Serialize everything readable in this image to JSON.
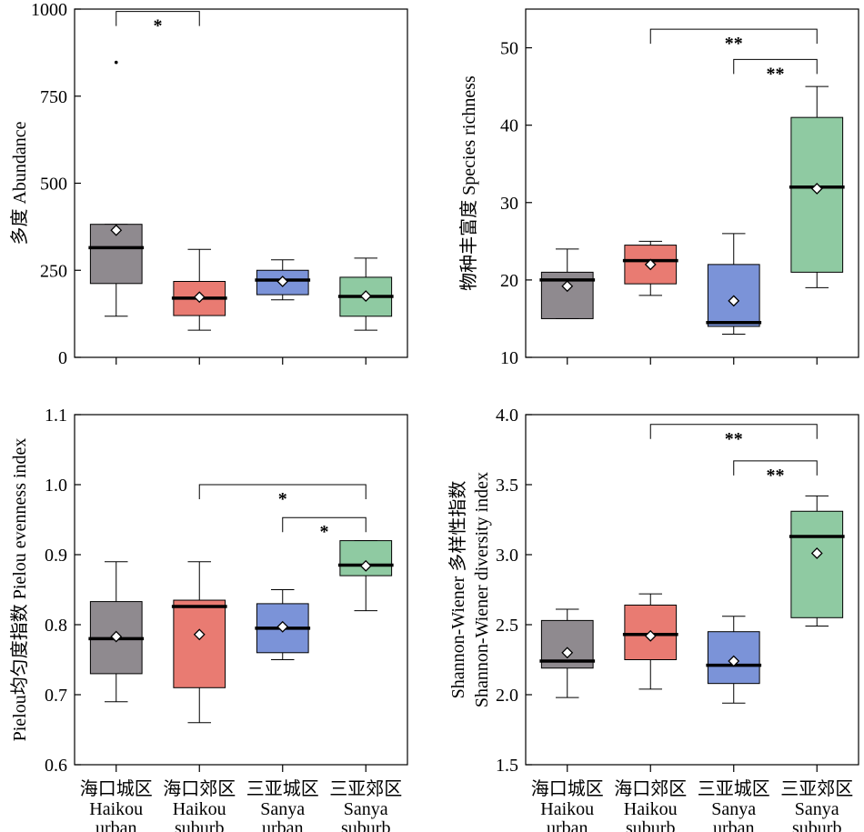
{
  "categories": [
    {
      "cn": "海口城区",
      "en1": "Haikou",
      "en2": "urban"
    },
    {
      "cn": "海口郊区",
      "en1": "Haikou",
      "en2": "suburb"
    },
    {
      "cn": "三亚城区",
      "en1": "Sanya",
      "en2": "urban"
    },
    {
      "cn": "三亚郊区",
      "en1": "Sanya",
      "en2": "suburb"
    }
  ],
  "colors": [
    "#8f8a8f",
    "#e97b72",
    "#7b93d8",
    "#8fcaa2"
  ],
  "chart_data": [
    {
      "type": "box",
      "ylabel": [
        "多度 Abundance"
      ],
      "ylim": [
        0,
        1000
      ],
      "yticks": [
        0,
        250,
        500,
        750,
        1000
      ],
      "boxes": [
        {
          "whisker_low": 118,
          "q1": 212,
          "median": 315,
          "q3": 382,
          "whisker_high": 382,
          "mean": 365,
          "outliers": [
            847
          ]
        },
        {
          "whisker_low": 78,
          "q1": 120,
          "median": 170,
          "q3": 218,
          "whisker_high": 310,
          "mean": 173,
          "outliers": []
        },
        {
          "whisker_low": 165,
          "q1": 180,
          "median": 222,
          "q3": 250,
          "whisker_high": 280,
          "mean": 218,
          "outliers": []
        },
        {
          "whisker_low": 78,
          "q1": 118,
          "median": 175,
          "q3": 230,
          "whisker_high": 285,
          "mean": 176,
          "outliers": []
        }
      ],
      "significance": [
        {
          "from": 0,
          "to": 1,
          "label": "*",
          "level": 993
        }
      ]
    },
    {
      "type": "box",
      "ylabel": [
        "物种丰富度 Species richness"
      ],
      "ylim": [
        10,
        55
      ],
      "yticks": [
        10,
        20,
        30,
        40,
        50
      ],
      "boxes": [
        {
          "whisker_low": 15,
          "q1": 15,
          "median": 20,
          "q3": 21,
          "whisker_high": 24,
          "mean": 19.2,
          "outliers": []
        },
        {
          "whisker_low": 18,
          "q1": 19.5,
          "median": 22.5,
          "q3": 24.5,
          "whisker_high": 25,
          "mean": 22,
          "outliers": []
        },
        {
          "whisker_low": 13,
          "q1": 14,
          "median": 14.5,
          "q3": 22,
          "whisker_high": 26,
          "mean": 17.3,
          "outliers": []
        },
        {
          "whisker_low": 19,
          "q1": 21,
          "median": 32,
          "q3": 41,
          "whisker_high": 45,
          "mean": 31.8,
          "outliers": []
        }
      ],
      "significance": [
        {
          "from": 1,
          "to": 3,
          "label": "**",
          "level": 52.4
        },
        {
          "from": 2,
          "to": 3,
          "label": "**",
          "level": 48.5
        }
      ]
    },
    {
      "type": "box",
      "ylabel": [
        "Pielou均匀度指数  Pielou evenness index"
      ],
      "ylim": [
        0.6,
        1.1
      ],
      "yticks": [
        0.6,
        0.7,
        0.8,
        0.9,
        1.0,
        1.1
      ],
      "boxes": [
        {
          "whisker_low": 0.69,
          "q1": 0.73,
          "median": 0.78,
          "q3": 0.833,
          "whisker_high": 0.89,
          "mean": 0.783,
          "outliers": []
        },
        {
          "whisker_low": 0.66,
          "q1": 0.71,
          "median": 0.826,
          "q3": 0.835,
          "whisker_high": 0.89,
          "mean": 0.786,
          "outliers": []
        },
        {
          "whisker_low": 0.75,
          "q1": 0.76,
          "median": 0.795,
          "q3": 0.83,
          "whisker_high": 0.85,
          "mean": 0.797,
          "outliers": []
        },
        {
          "whisker_low": 0.82,
          "q1": 0.87,
          "median": 0.885,
          "q3": 0.92,
          "whisker_high": 0.92,
          "mean": 0.884,
          "outliers": []
        }
      ],
      "significance": [
        {
          "from": 1,
          "to": 3,
          "label": "*",
          "level": 1.0
        },
        {
          "from": 2,
          "to": 3,
          "label": "*",
          "level": 0.953
        }
      ]
    },
    {
      "type": "box",
      "ylabel": [
        "Shannon-Wiener 多样性指数",
        "Shannon-Wiener diversity index"
      ],
      "ylim": [
        1.5,
        4.0
      ],
      "yticks": [
        1.5,
        2.0,
        2.5,
        3.0,
        3.5,
        4.0
      ],
      "boxes": [
        {
          "whisker_low": 1.98,
          "q1": 2.19,
          "median": 2.24,
          "q3": 2.53,
          "whisker_high": 2.61,
          "mean": 2.3,
          "outliers": []
        },
        {
          "whisker_low": 2.04,
          "q1": 2.25,
          "median": 2.43,
          "q3": 2.64,
          "whisker_high": 2.72,
          "mean": 2.42,
          "outliers": []
        },
        {
          "whisker_low": 1.94,
          "q1": 2.08,
          "median": 2.21,
          "q3": 2.45,
          "whisker_high": 2.56,
          "mean": 2.24,
          "outliers": []
        },
        {
          "whisker_low": 2.49,
          "q1": 2.55,
          "median": 3.13,
          "q3": 3.31,
          "whisker_high": 3.42,
          "mean": 3.01,
          "outliers": []
        }
      ],
      "significance": [
        {
          "from": 1,
          "to": 3,
          "label": "**",
          "level": 3.93
        },
        {
          "from": 2,
          "to": 3,
          "label": "**",
          "level": 3.67
        }
      ]
    }
  ]
}
